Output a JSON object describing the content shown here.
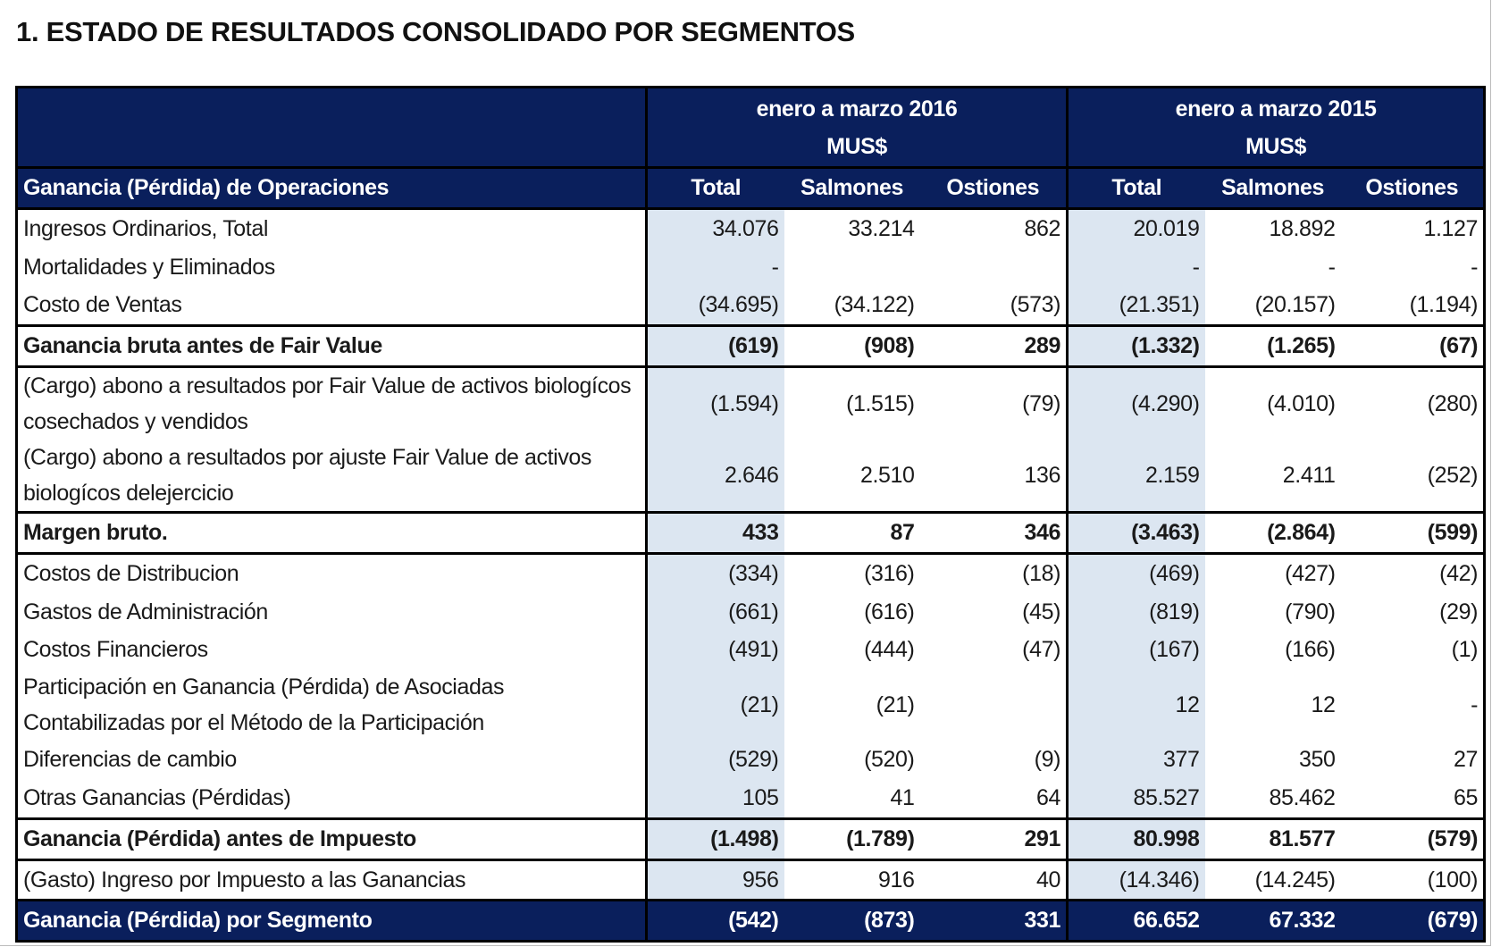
{
  "title": "1. ESTADO DE RESULTADOS CONSOLIDADO POR SEGMENTOS",
  "periods": [
    {
      "line1": "enero a marzo 2016",
      "line2": "MUS$"
    },
    {
      "line1": "enero a marzo 2015",
      "line2": "MUS$"
    }
  ],
  "column_header": {
    "label": "Ganancia (Pérdida) de Operaciones",
    "cols": [
      "Total",
      "Salmones",
      "Ostiones",
      "Total",
      "Salmones",
      "Ostiones"
    ]
  },
  "colors": {
    "navy": "#0a1f5c",
    "total_shade": "#dce6f1"
  },
  "rows": [
    {
      "label": "Ingresos Ordinarios, Total",
      "type": "normal",
      "values": [
        "34.076",
        "33.214",
        "862",
        "20.019",
        "18.892",
        "1.127"
      ]
    },
    {
      "label": "Mortalidades y Eliminados",
      "type": "normal",
      "values": [
        "-",
        "",
        "",
        "-",
        "-",
        "-"
      ]
    },
    {
      "label": "Costo de Ventas",
      "type": "normal",
      "values": [
        "(34.695)",
        "(34.122)",
        "(573)",
        "(21.351)",
        "(20.157)",
        "(1.194)"
      ]
    },
    {
      "label": "Ganancia bruta antes de Fair Value",
      "type": "bold",
      "values": [
        "(619)",
        "(908)",
        "289",
        "(1.332)",
        "(1.265)",
        "(67)"
      ]
    },
    {
      "label": "(Cargo) abono a resultados por Fair Value de activos biologícos cosechados y vendidos",
      "type": "two",
      "values": [
        "(1.594)",
        "(1.515)",
        "(79)",
        "(4.290)",
        "(4.010)",
        "(280)"
      ]
    },
    {
      "label": "(Cargo) abono a resultados por ajuste Fair Value de activos biologícos delejercicio",
      "type": "two",
      "values": [
        "2.646",
        "2.510",
        "136",
        "2.159",
        "2.411",
        "(252)"
      ]
    },
    {
      "label": "Margen bruto.",
      "type": "bold",
      "values": [
        "433",
        "87",
        "346",
        "(3.463)",
        "(2.864)",
        "(599)"
      ]
    },
    {
      "label": "Costos de Distribucion",
      "type": "normal",
      "values": [
        "(334)",
        "(316)",
        "(18)",
        "(469)",
        "(427)",
        "(42)"
      ]
    },
    {
      "label": "Gastos de Administración",
      "type": "normal",
      "values": [
        "(661)",
        "(616)",
        "(45)",
        "(819)",
        "(790)",
        "(29)"
      ]
    },
    {
      "label": "Costos Financieros",
      "type": "normal",
      "values": [
        "(491)",
        "(444)",
        "(47)",
        "(167)",
        "(166)",
        "(1)"
      ]
    },
    {
      "label": "Participación en Ganancia (Pérdida) de Asociadas Contabilizadas por el Método de la Participación",
      "type": "two",
      "values": [
        "(21)",
        "(21)",
        "",
        "12",
        "12",
        "-"
      ]
    },
    {
      "label": "Diferencias de cambio",
      "type": "normal",
      "values": [
        "(529)",
        "(520)",
        "(9)",
        "377",
        "350",
        "27"
      ]
    },
    {
      "label": "Otras Ganancias (Pérdidas)",
      "type": "normal",
      "values": [
        "105",
        "41",
        "64",
        "85.527",
        "85.462",
        "65"
      ]
    },
    {
      "label": "Ganancia (Pérdida) antes de Impuesto",
      "type": "bold",
      "values": [
        "(1.498)",
        "(1.789)",
        "291",
        "80.998",
        "81.577",
        "(579)"
      ]
    },
    {
      "label": "(Gasto) Ingreso por Impuesto a las Ganancias",
      "type": "normal",
      "values": [
        "956",
        "916",
        "40",
        "(14.346)",
        "(14.245)",
        "(100)"
      ]
    },
    {
      "label": "Ganancia (Pérdida) por Segmento",
      "type": "final",
      "values": [
        "(542)",
        "(873)",
        "331",
        "66.652",
        "67.332",
        "(679)"
      ]
    }
  ]
}
